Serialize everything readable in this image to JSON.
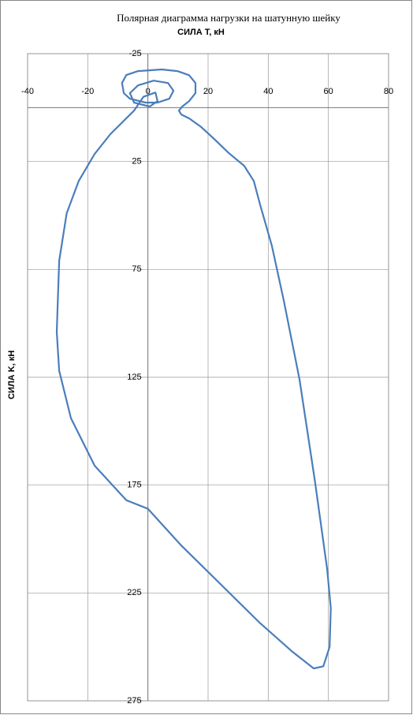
{
  "chart_data": {
    "type": "line",
    "title": "Полярная диаграмма нагрузки на шатунную шейку",
    "x_label": "СИЛА T, кН",
    "y_label": "СИЛА K, кН",
    "xlim": [
      -40,
      80
    ],
    "xticks": [
      -40,
      -20,
      0,
      20,
      40,
      60,
      80
    ],
    "ylim": [
      -25,
      275
    ],
    "yticks": [
      -25,
      25,
      75,
      125,
      175,
      225,
      275
    ],
    "y_inverted": true,
    "grid": true,
    "color": "#4a7ebb",
    "x": [
      -4.6,
      -12.5,
      -17.7,
      -23,
      -27,
      -29.5,
      -30.3,
      -29.5,
      -25.6,
      -17.7,
      -7.2,
      0,
      11.1,
      24.2,
      37.3,
      47.8,
      55.1,
      58.3,
      60.4,
      60.8,
      59.6,
      55.5,
      50.4,
      45.1,
      41.2,
      37.3,
      35.2,
      32,
      26.8,
      21.6,
      17.7,
      13.7,
      11.1,
      10.3,
      11.4,
      13.7,
      15.8,
      15.8,
      13.7,
      9.8,
      4.6,
      -3.3,
      -7.2,
      -8.6,
      -8,
      -6,
      -0.7,
      3.2,
      7.1,
      8.5,
      6.7,
      1.9,
      -3.3,
      -6,
      -4.6,
      0.6,
      3.2,
      2.5,
      -1.5,
      -4.6
    ],
    "values": [
      1.4,
      12.3,
      21.5,
      34,
      49,
      71,
      104,
      122,
      144,
      166,
      182,
      186,
      203,
      221,
      239,
      252,
      260,
      259,
      250,
      232,
      214,
      173,
      126,
      89,
      64,
      45,
      34,
      27,
      21,
      14,
      9,
      5,
      3.2,
      1.4,
      -0.5,
      -3,
      -6.7,
      -11.4,
      -15,
      -16.9,
      -17.7,
      -16.9,
      -15.1,
      -11.4,
      -6.7,
      -4.1,
      -2.3,
      -2.3,
      -4.1,
      -7.8,
      -11.4,
      -12.5,
      -10.3,
      -6.7,
      -2.3,
      -0.5,
      -3,
      -7,
      -5,
      1.4
    ]
  }
}
